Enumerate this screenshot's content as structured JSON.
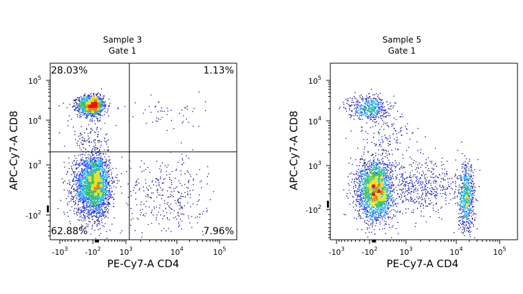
{
  "chart_data": [
    {
      "type": "scatter",
      "title": "Sample 3",
      "subtitle": "Gate 1",
      "xlabel": "PE-Cy7-A CD4",
      "ylabel": "APC-Cy7-A CD8",
      "x_scale": "biexponential",
      "y_scale": "biexponential",
      "x_ticks": [
        {
          "value": -1000,
          "label": "-10",
          "exp": "3"
        },
        {
          "value": -100,
          "label": "-10",
          "exp": "2"
        },
        {
          "value": 1000,
          "label": "10",
          "exp": "3"
        },
        {
          "value": 10000,
          "label": "10",
          "exp": "4"
        },
        {
          "value": 100000,
          "label": "10",
          "exp": "5"
        }
      ],
      "y_ticks": [
        {
          "value": 100000,
          "label": "10",
          "exp": "5"
        },
        {
          "value": 10000,
          "label": "10",
          "exp": "4"
        },
        {
          "value": 1000,
          "label": "10",
          "exp": "3"
        },
        {
          "value": -100,
          "label": "-10",
          "exp": "2"
        }
      ],
      "quadrant_gate": {
        "x": 1100,
        "y": 1900
      },
      "quadrants": [
        {
          "position": "top-left",
          "label": "28.03%"
        },
        {
          "position": "top-right",
          "label": "1.13%"
        },
        {
          "position": "bottom-left",
          "label": "62.88%"
        },
        {
          "position": "bottom-right",
          "label": "7.96%"
        }
      ],
      "populations": [
        {
          "x": -120,
          "y": 24000,
          "x_sd_asinh": 0.27,
          "y_sd_asinh": 0.28,
          "events": 1400
        },
        {
          "x": -80,
          "y": 420,
          "x_sd_asinh": 0.38,
          "y_sd_asinh": 0.5,
          "events": 3000
        },
        {
          "x": 6000,
          "y": 220,
          "x_sd_asinh": 1.0,
          "y_sd_asinh": 0.65,
          "events": 330
        },
        {
          "x": 5000,
          "y": 14500,
          "x_sd_asinh": 1.1,
          "y_sd_asinh": 0.5,
          "events": 55
        },
        {
          "x": -100,
          "y": 4200,
          "x_sd_asinh": 0.4,
          "y_sd_asinh": 0.8,
          "events": 150
        }
      ],
      "density_colors": [
        "#1c1c8c",
        "#2a3cff",
        "#20b8e8",
        "#30c060",
        "#e8e020",
        "#f08010",
        "#ee1010"
      ]
    },
    {
      "type": "scatter",
      "title": "Sample 5",
      "subtitle": "Gate 1",
      "xlabel": "PE-Cy7-A CD4",
      "ylabel": "APC-Cy7-A CD8",
      "x_scale": "biexponential",
      "y_scale": "biexponential",
      "x_ticks": [
        {
          "value": -1000,
          "label": "-10",
          "exp": "3"
        },
        {
          "value": -100,
          "label": "-10",
          "exp": "2"
        },
        {
          "value": 1000,
          "label": "10",
          "exp": "3"
        },
        {
          "value": 10000,
          "label": "10",
          "exp": "4"
        },
        {
          "value": 100000,
          "label": "10",
          "exp": "5"
        }
      ],
      "y_ticks": [
        {
          "value": 100000,
          "label": "10",
          "exp": "5"
        },
        {
          "value": 10000,
          "label": "10",
          "exp": "4"
        },
        {
          "value": 1000,
          "label": "10",
          "exp": "3"
        },
        {
          "value": -100,
          "label": "-10",
          "exp": "2"
        }
      ],
      "populations": [
        {
          "x": -110,
          "y": 22000,
          "x_sd_asinh": 0.4,
          "y_sd_asinh": 0.35,
          "events": 500
        },
        {
          "x": 25,
          "y": 270,
          "x_sd_asinh": 0.38,
          "y_sd_asinh": 0.56,
          "events": 2400
        },
        {
          "x": 16800,
          "y": 95,
          "x_sd_asinh": 0.22,
          "y_sd_asinh": 0.64,
          "events": 700
        },
        {
          "x": 2000,
          "y": 380,
          "x_sd_asinh": 0.8,
          "y_sd_asinh": 0.5,
          "events": 500
        },
        {
          "x": 300,
          "y": 4000,
          "x_sd_asinh": 0.6,
          "y_sd_asinh": 0.7,
          "events": 150
        }
      ],
      "density_colors": [
        "#1c1c8c",
        "#2a3cff",
        "#20b8e8",
        "#30c060",
        "#e8e020",
        "#f08010",
        "#ee1010"
      ]
    }
  ]
}
